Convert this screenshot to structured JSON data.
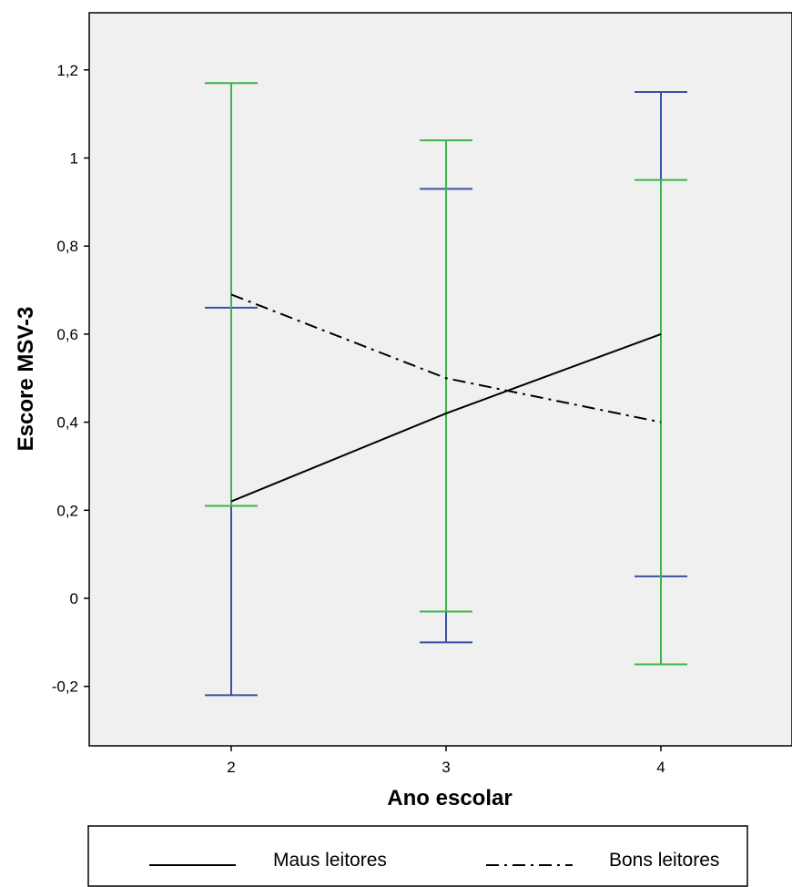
{
  "chart_data": {
    "type": "line",
    "title": "",
    "xlabel": "Ano escolar",
    "ylabel": "Escore MSV-3",
    "categories": [
      "2",
      "3",
      "4"
    ],
    "ylim": [
      -0.33,
      1.33
    ],
    "yticks": [
      -0.2,
      0,
      0.2,
      0.4,
      0.6,
      0.8,
      1.0,
      1.2
    ],
    "ytick_labels": [
      "-0,2",
      "0",
      "0,2",
      "0,4",
      "0,6",
      "0,8",
      "1",
      "1,2"
    ],
    "grid": false,
    "legend_position": "bottom",
    "series": [
      {
        "name": "Maus leitores",
        "line_style": "solid",
        "color": "#000000",
        "errorbar_color": "#3a4fa6",
        "values": [
          0.22,
          0.42,
          0.6
        ],
        "error_low": [
          -0.22,
          -0.1,
          0.05
        ],
        "error_high": [
          0.66,
          0.93,
          1.15
        ]
      },
      {
        "name": "Bons leitores",
        "line_style": "dash-dot",
        "color": "#000000",
        "errorbar_color": "#3cb54a",
        "values": [
          0.69,
          0.5,
          0.4
        ],
        "error_low": [
          0.21,
          -0.03,
          -0.15
        ],
        "error_high": [
          1.17,
          1.04,
          0.95
        ]
      }
    ],
    "plot_background": "#f0f0f0"
  }
}
